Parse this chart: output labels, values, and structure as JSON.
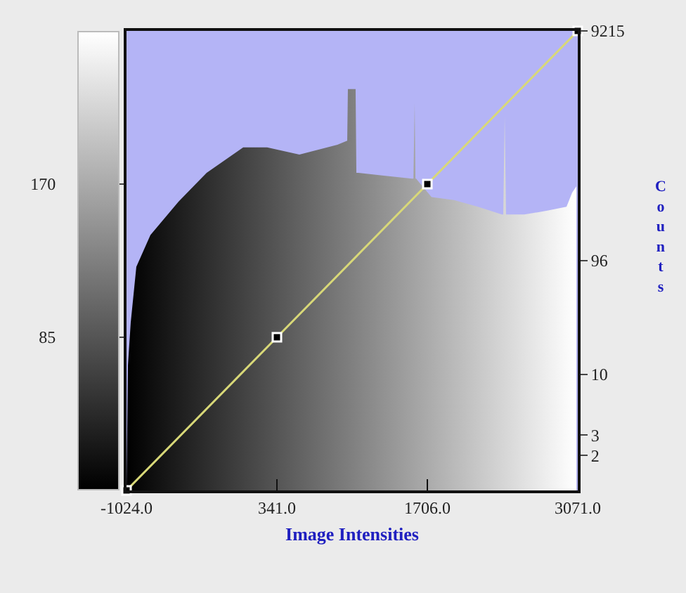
{
  "chart_data": {
    "type": "area",
    "xlabel": "Image Intensities",
    "y2label": "Counts",
    "xlim": [
      -1024,
      3071
    ],
    "xticks": [
      {
        "value": -1024,
        "label": "-1024.0"
      },
      {
        "value": 341,
        "label": "341.0"
      },
      {
        "value": 1706,
        "label": "1706.0"
      },
      {
        "value": 3071,
        "label": "3071.0"
      }
    ],
    "ylim": [
      0,
      255
    ],
    "yticks": [
      85,
      170
    ],
    "y2lim": [
      1,
      9215
    ],
    "y2ticks": [
      2,
      3,
      10,
      96,
      9215
    ],
    "log": "y2",
    "series": [
      {
        "axis": "y2",
        "x": [
          -1024,
          -1011,
          -986,
          -935,
          -807,
          -552,
          -297,
          35,
          252,
          545,
          890,
          979,
          985,
          1055,
          1062,
          1081,
          1311,
          1566,
          1580,
          1591,
          1598,
          1604,
          1744,
          1948,
          2165,
          2382,
          2395,
          2408,
          2420,
          2433,
          2586,
          2803,
          2969,
          3020,
          3058
        ],
        "values": [
          1,
          12,
          28,
          85,
          160,
          310,
          550,
          910,
          910,
          790,
          960,
          1040,
          2900,
          2900,
          550,
          550,
          520,
          490,
          490,
          2200,
          490,
          490,
          340,
          320,
          280,
          240,
          240,
          1700,
          240,
          240,
          240,
          260,
          280,
          370,
          420
        ]
      },
      {
        "type": "line",
        "axis": "y",
        "x": [
          -1024,
          341,
          1706,
          3071
        ],
        "values": [
          0,
          85,
          170,
          255
        ],
        "color": "#d8d878",
        "marker": "square"
      }
    ],
    "grid": false
  }
}
